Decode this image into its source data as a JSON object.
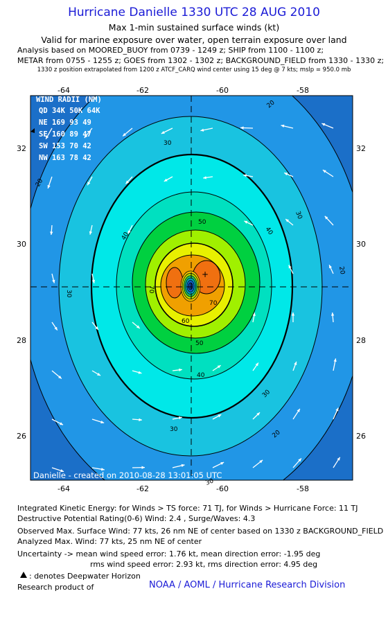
{
  "header": {
    "title": "Hurricane Danielle 1330 UTC 28 AUG 2010",
    "subtitle1": "Max 1-min sustained surface winds (kt)",
    "subtitle2": "Valid for marine exposure over water, open terrain exposure over land",
    "analysis1": "Analysis based on MOORED_BUOY from 0739 - 1249 z; SHIP from 1100 - 1100 z;",
    "analysis2": "METAR from 0755 - 1255 z; GOES from 1302 - 1302 z; BACKGROUND_FIELD from 1330 - 1330 z;",
    "position_note": "1330 z position extrapolated from 1200 z ATCF_CARQ wind center using 15 deg @ 7 kts; mslp = 950.0 mb"
  },
  "map": {
    "lon_ticks": [
      "-64",
      "-62",
      "-60",
      "-58"
    ],
    "lat_ticks": [
      "32",
      "30",
      "28",
      "26"
    ],
    "contour_labels": [
      "20",
      "20",
      "20",
      "20",
      "30",
      "30",
      "30",
      "30",
      "30",
      "30",
      "40",
      "40",
      "40",
      "50",
      "50",
      "60",
      "70",
      "70"
    ],
    "wind_radii": {
      "title": "WIND RADII (NM)",
      "header": "QD 34K 50K 64K",
      "rows": [
        "NE 169  93  49",
        "SE 160  89  47",
        "SW 153  70  42",
        "NW 163  78  42"
      ]
    },
    "credit": "Danielle - created on 2010-08-28 13:01:05 UTC",
    "colors": {
      "c0": "#1b6fc8",
      "c20": "#2196e6",
      "c30": "#19c3e0",
      "c40": "#00e8e8",
      "c45": "#00e0c0",
      "c50": "#00d040",
      "c55": "#a0f000",
      "c60": "#e8f000",
      "c70": "#f0a000",
      "c80": "#f07010"
    }
  },
  "footer": {
    "ike": "Integrated Kinetic Energy:  for Winds > TS force: 71 TJ,  for Winds > Hurricane Force: 11 TJ",
    "dpr": "Destructive Potential Rating(0-6)   Wind: 2.4 , Surge/Waves: 4.3",
    "observed": "Observed Max. Surface Wind: 77 kts, 26 nm NE of center based on 1330 z BACKGROUND_FIELD",
    "analyzed": "Analyzed Max. Wind: 77 kts, 25 nm NE of center",
    "uncert1": "Uncertainty -> mean wind speed error: 1.76 kt,   mean direction error:  -1.95 deg",
    "uncert2": "rms wind speed error: 2.93 kt,   rms direction error: 4.95 deg",
    "deepwater": ": denotes Deepwater Horizon",
    "research": "Research product of",
    "org": "NOAA / AOML / Hurricane Research Division"
  }
}
